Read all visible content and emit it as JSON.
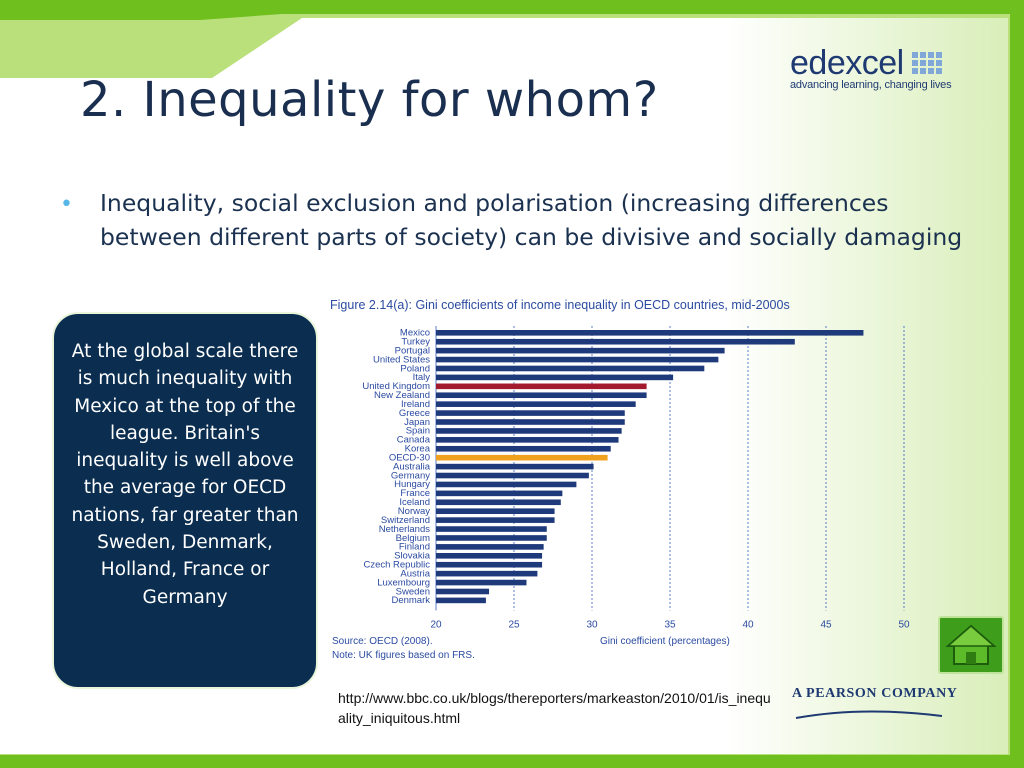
{
  "slide": {
    "title": "2. Inequality for whom?",
    "bullet": "Inequality, social exclusion and polarisation (increasing differences between different parts of society) can be divisive and socially damaging",
    "callout": "At the global scale there is much inequality with Mexico at the top of the league. Britain's inequality is well above the average for OECD nations, far greater than Sweden, Denmark, Holland, France or Germany",
    "source_url": "http://www.bbc.co.uk/blogs/thereporters/markeaston/2010/01/is_inequality_iniquitous.html"
  },
  "logo": {
    "word": "edexcel",
    "tagline": "advancing learning, changing lives"
  },
  "pearson": "A PEARSON COMPANY",
  "icons": {
    "home": "home-icon"
  },
  "colors": {
    "green_frame": "#6fbf1e",
    "navy": "#0b2d4f",
    "bar_blue": "#1f3a7a",
    "bar_uk": "#a3192e",
    "bar_oecd": "#f0a21e",
    "label_blue": "#2b4ba1"
  },
  "chart_data": {
    "type": "bar",
    "orientation": "horizontal",
    "title": "Figure 2.14(a): Gini coefficients of income inequality in OECD countries, mid-2000s",
    "xlabel": "Gini coefficient (percentages)",
    "xlim": [
      20,
      50
    ],
    "xticks": [
      20,
      25,
      30,
      35,
      40,
      45,
      50
    ],
    "grid": "vertical dotted",
    "highlight": {
      "United Kingdom": "#a3192e",
      "OECD-30": "#f0a21e"
    },
    "categories": [
      "Mexico",
      "Turkey",
      "Portugal",
      "United States",
      "Poland",
      "Italy",
      "United Kingdom",
      "New Zealand",
      "Ireland",
      "Greece",
      "Japan",
      "Spain",
      "Canada",
      "Korea",
      "OECD-30",
      "Australia",
      "Germany",
      "Hungary",
      "France",
      "Iceland",
      "Norway",
      "Switzerland",
      "Netherlands",
      "Belgium",
      "Finland",
      "Slovakia",
      "Czech Republic",
      "Austria",
      "Luxembourg",
      "Sweden",
      "Denmark"
    ],
    "values": [
      47.4,
      43.0,
      38.5,
      38.1,
      37.2,
      35.2,
      33.5,
      33.5,
      32.8,
      32.1,
      32.1,
      31.9,
      31.7,
      31.2,
      31.0,
      30.1,
      29.8,
      29.0,
      28.1,
      28.0,
      27.6,
      27.6,
      27.1,
      27.1,
      26.9,
      26.8,
      26.8,
      26.5,
      25.8,
      23.4,
      23.2
    ],
    "source": "Source: OECD (2008).",
    "note": "Note: UK figures based on FRS."
  }
}
